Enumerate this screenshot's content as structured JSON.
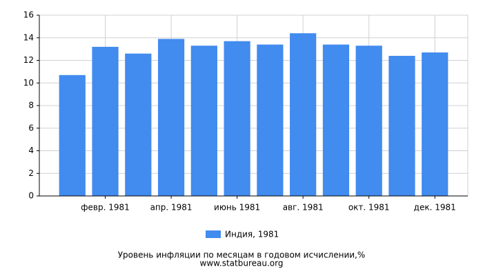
{
  "chart_data": {
    "type": "bar",
    "title": "Уровень инфляции по месяцам в годовом исчислении,%",
    "subtitle": "www.statbureau.org",
    "categories": [
      null,
      "февр. 1981",
      null,
      "апр. 1981",
      null,
      "июнь 1981",
      null,
      "авг. 1981",
      null,
      "окт. 1981",
      null,
      "дек. 1981"
    ],
    "series": [
      {
        "name": "Индия, 1981",
        "color": "#428bef",
        "values": [
          10.7,
          13.2,
          12.6,
          13.9,
          13.3,
          13.7,
          13.4,
          14.4,
          13.4,
          13.3,
          12.4,
          12.7
        ]
      }
    ],
    "ylim": [
      0,
      16
    ],
    "yticks": [
      0,
      2,
      4,
      6,
      8,
      10,
      12,
      14,
      16
    ],
    "grid": true,
    "legend": "bottom"
  }
}
